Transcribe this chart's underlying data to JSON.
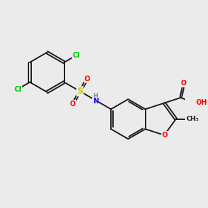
{
  "background_color": "#ebebeb",
  "bond_color": "#1a1a1a",
  "atom_colors": {
    "O": "#ff0000",
    "N": "#0000ee",
    "S": "#cccc00",
    "Cl": "#00cc00",
    "H": "#888888",
    "C": "#1a1a1a"
  },
  "figsize": [
    3.0,
    3.0
  ],
  "dpi": 100,
  "lw": 1.4,
  "fs": 7.0
}
